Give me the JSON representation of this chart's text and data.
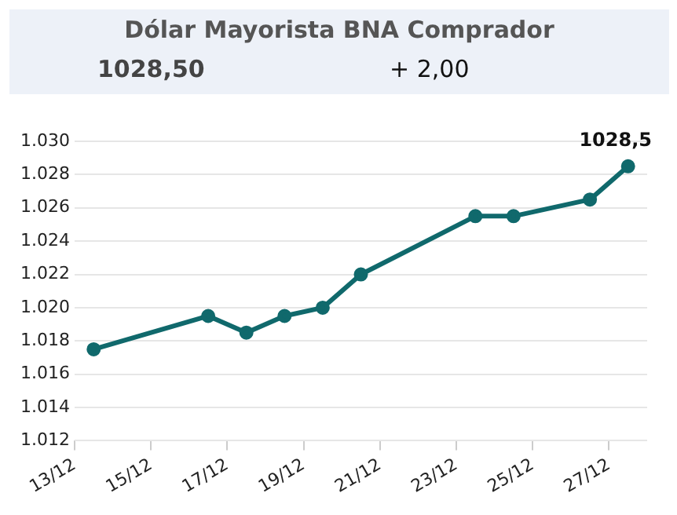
{
  "chart_data": {
    "type": "line",
    "title": "Dólar Mayorista BNA Comprador",
    "annotations": [
      "1028,50",
      "+ 2,00"
    ],
    "x": [
      "--12-13T12:00",
      "--12-16T12:00",
      "--12-17T12:00",
      "--12-18T12:00",
      "--12-19T12:00",
      "--12-20T12:00",
      "--12-23T12:00",
      "--12-24T12:00",
      "--12-26T12:00",
      "--12-27T12:00"
    ],
    "series": [
      {
        "color": "#10696c",
        "values": [
          1017.5,
          1019.5,
          1018.5,
          1019.5,
          1020.0,
          1022.0,
          1025.5,
          1025.5,
          1026.5,
          1028.5
        ],
        "value_labels": [
          null,
          null,
          null,
          null,
          null,
          null,
          null,
          null,
          null,
          "1028,5"
        ]
      }
    ],
    "xlim": [
      "--12-13",
      "--12-28"
    ],
    "xticks": [
      {
        "value": "--12-13",
        "label": "13/12"
      },
      {
        "value": "--12-15",
        "label": "15/12"
      },
      {
        "value": "--12-17",
        "label": "17/12"
      },
      {
        "value": "--12-19",
        "label": "19/12"
      },
      {
        "value": "--12-21",
        "label": "21/12"
      },
      {
        "value": "--12-23",
        "label": "23/12"
      },
      {
        "value": "--12-25",
        "label": "25/12"
      },
      {
        "value": "--12-27",
        "label": "27/12"
      }
    ],
    "ylim": [
      1012,
      1030
    ],
    "yticks": [
      {
        "value": 1012,
        "label": "1.012"
      },
      {
        "value": 1014,
        "label": "1.014"
      },
      {
        "value": 1016,
        "label": "1.016"
      },
      {
        "value": 1018,
        "label": "1.018"
      },
      {
        "value": 1020,
        "label": "1.020"
      },
      {
        "value": 1022,
        "label": "1.022"
      },
      {
        "value": 1024,
        "label": "1.024"
      },
      {
        "value": 1026,
        "label": "1.026"
      },
      {
        "value": 1028,
        "label": "1.028"
      },
      {
        "value": 1030,
        "label": "1.030"
      }
    ],
    "grid": "y",
    "legend": false,
    "marker": "circle",
    "line_style": "solid"
  }
}
